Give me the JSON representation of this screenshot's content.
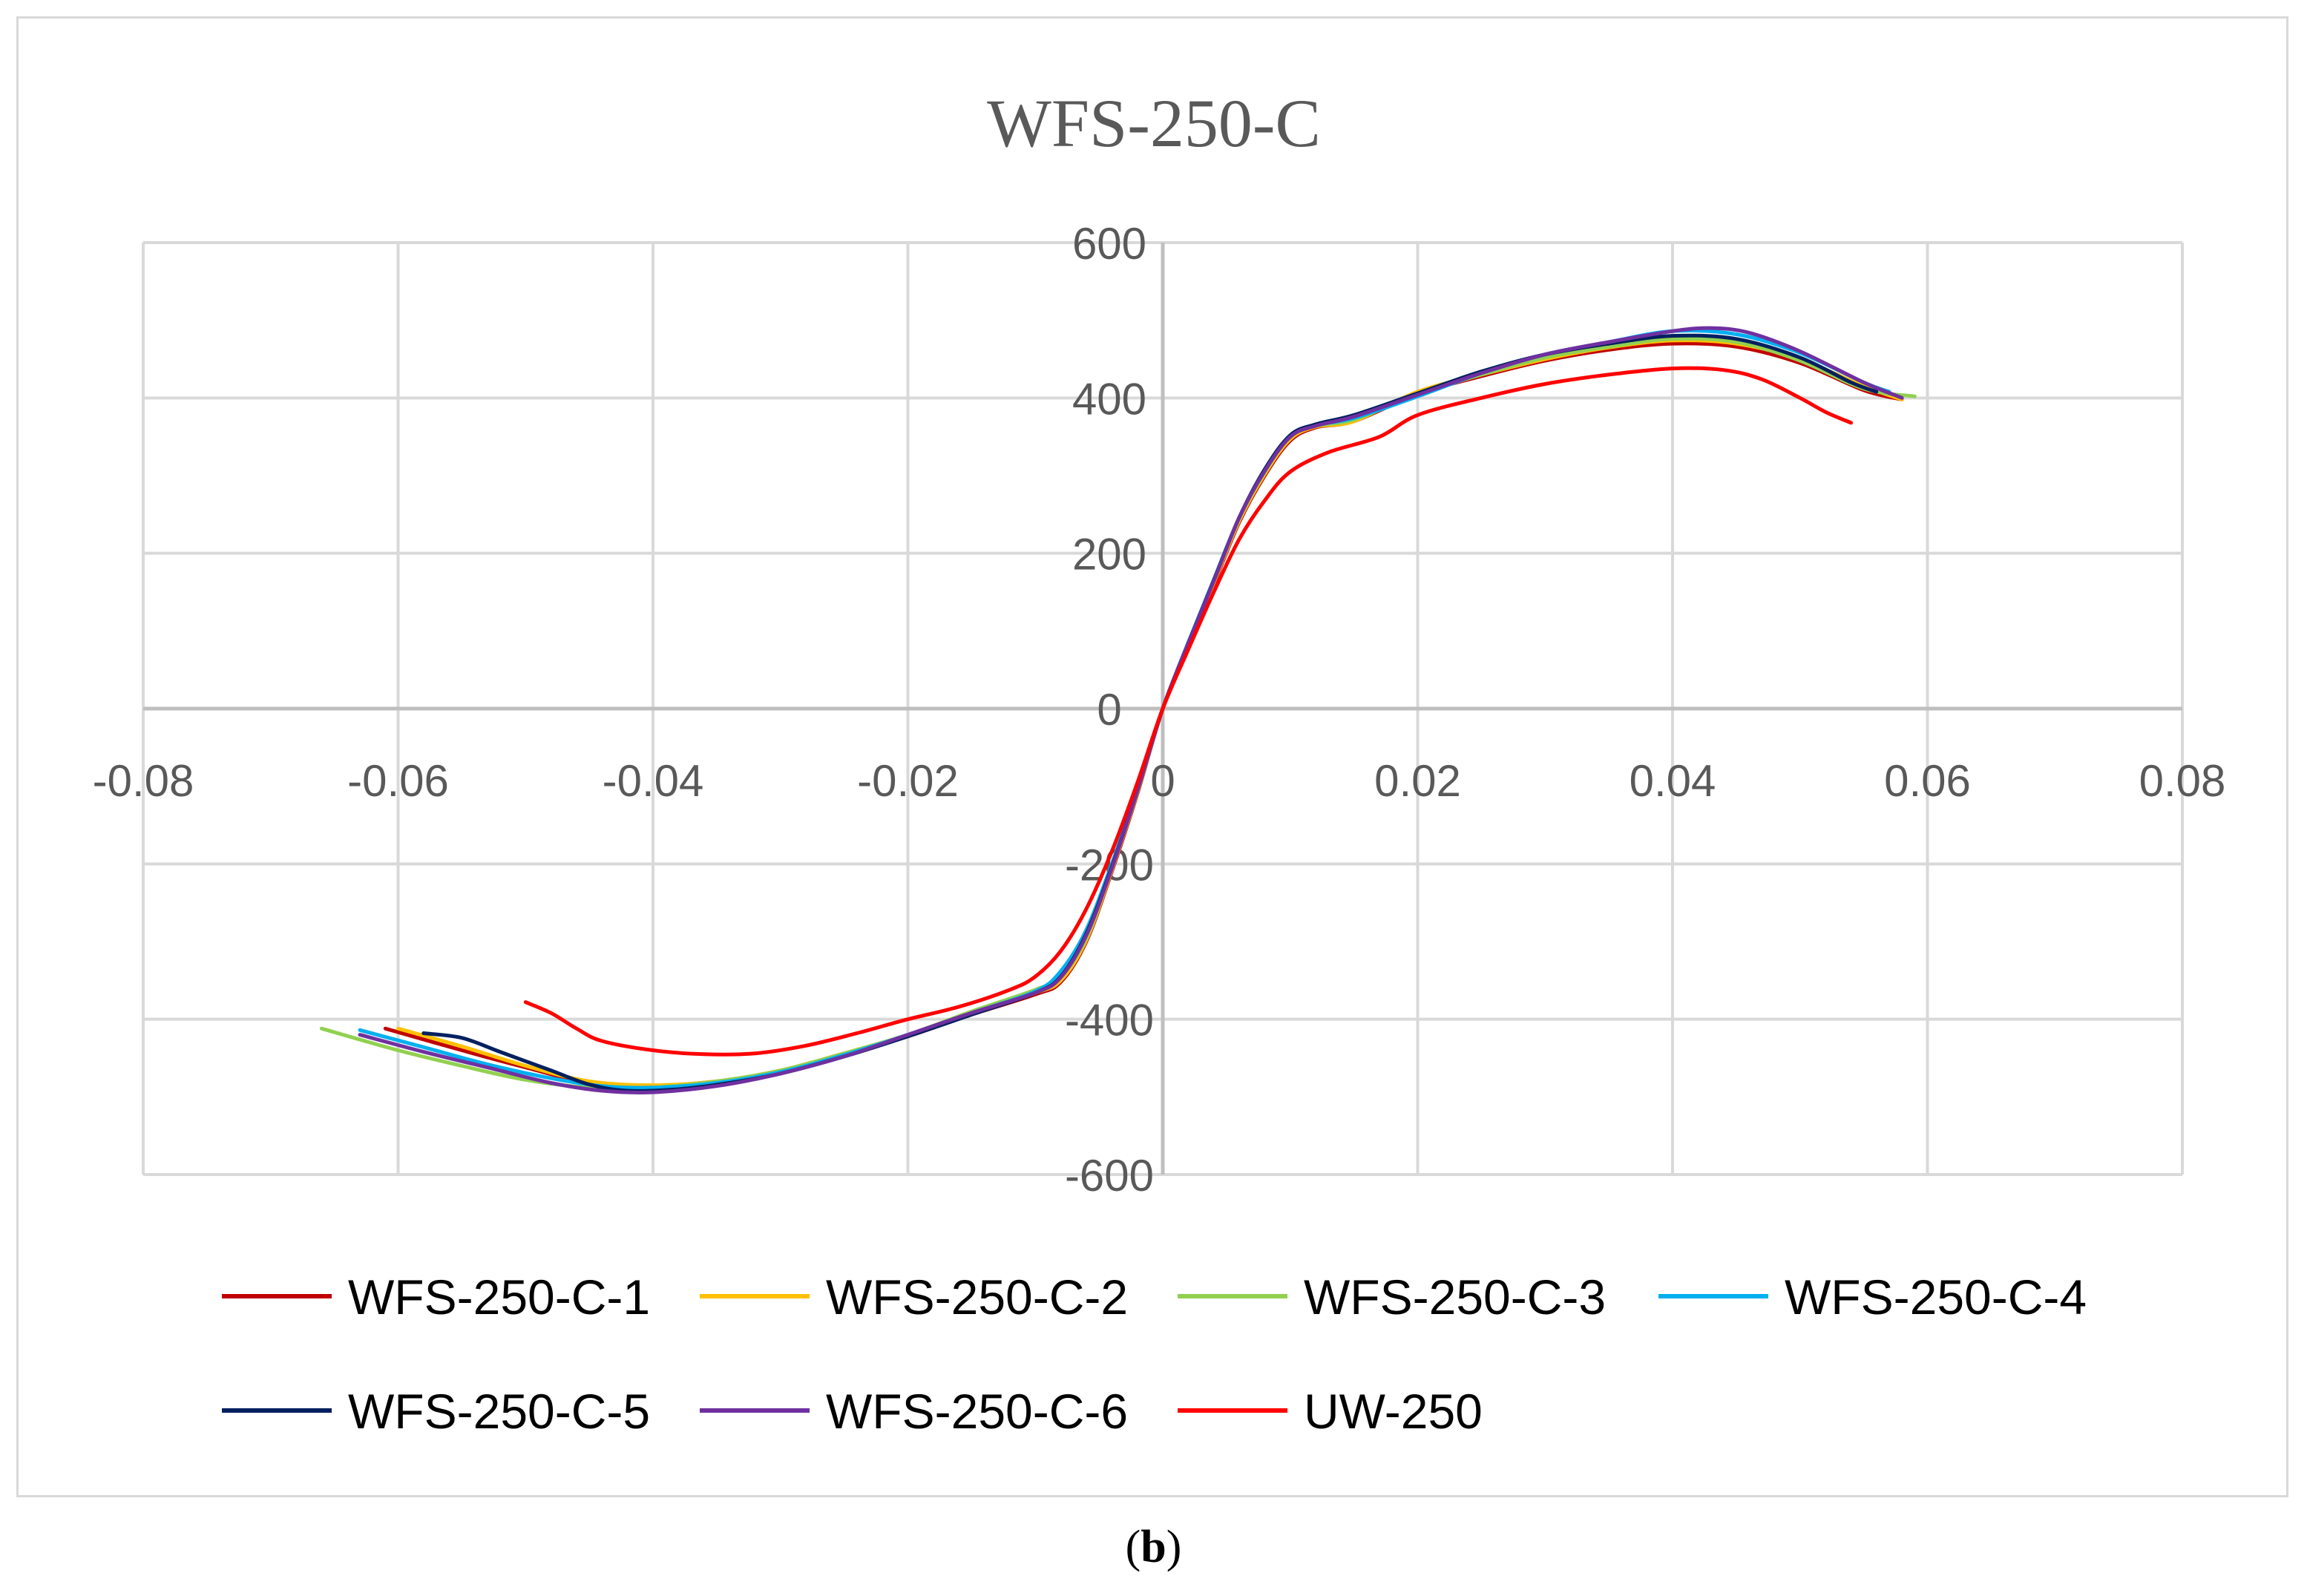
{
  "chart_data": {
    "type": "line",
    "title": "WFS-250-C",
    "xlabel": "",
    "ylabel": "",
    "xlim": [
      -0.08,
      0.08
    ],
    "ylim": [
      -600,
      600
    ],
    "xticks": [
      -0.08,
      -0.06,
      -0.04,
      -0.02,
      0,
      0.02,
      0.04,
      0.06,
      0.08
    ],
    "xtick_labels": [
      "-0.08",
      "-0.06",
      "-0.04",
      "-0.02",
      "0",
      "0.02",
      "0.04",
      "0.06",
      "0.08"
    ],
    "yticks": [
      -600,
      -400,
      -200,
      0,
      200,
      400,
      600
    ],
    "ytick_labels": [
      "-600",
      "-400",
      "-200",
      "0",
      "200",
      "400",
      "600"
    ],
    "grid": true,
    "legend_position": "bottom",
    "series": [
      {
        "name": "WFS-250-C-1",
        "color": "#c00000",
        "points": [
          [
            -0.061,
            -412
          ],
          [
            -0.055,
            -440
          ],
          [
            -0.05,
            -462
          ],
          [
            -0.045,
            -482
          ],
          [
            -0.04,
            -486
          ],
          [
            -0.035,
            -480
          ],
          [
            -0.03,
            -468
          ],
          [
            -0.025,
            -446
          ],
          [
            -0.02,
            -422
          ],
          [
            -0.015,
            -394
          ],
          [
            -0.01,
            -368
          ],
          [
            -0.008,
            -352
          ],
          [
            -0.006,
            -300
          ],
          [
            -0.004,
            -210
          ],
          [
            -0.002,
            -110
          ],
          [
            0,
            0
          ],
          [
            0.002,
            80
          ],
          [
            0.004,
            160
          ],
          [
            0.006,
            240
          ],
          [
            0.008,
            300
          ],
          [
            0.01,
            345
          ],
          [
            0.012,
            362
          ],
          [
            0.015,
            370
          ],
          [
            0.02,
            405
          ],
          [
            0.025,
            428
          ],
          [
            0.03,
            448
          ],
          [
            0.035,
            462
          ],
          [
            0.04,
            470
          ],
          [
            0.045,
            466
          ],
          [
            0.05,
            445
          ],
          [
            0.055,
            410
          ],
          [
            0.058,
            398
          ]
        ]
      },
      {
        "name": "WFS-250-C-2",
        "color": "#ffc000",
        "points": [
          [
            -0.06,
            -412
          ],
          [
            -0.055,
            -435
          ],
          [
            -0.05,
            -460
          ],
          [
            -0.045,
            -480
          ],
          [
            -0.04,
            -485
          ],
          [
            -0.035,
            -480
          ],
          [
            -0.03,
            -466
          ],
          [
            -0.025,
            -444
          ],
          [
            -0.02,
            -420
          ],
          [
            -0.015,
            -392
          ],
          [
            -0.01,
            -366
          ],
          [
            -0.008,
            -350
          ],
          [
            -0.006,
            -298
          ],
          [
            -0.004,
            -208
          ],
          [
            -0.002,
            -108
          ],
          [
            0,
            0
          ],
          [
            0.002,
            82
          ],
          [
            0.004,
            162
          ],
          [
            0.006,
            242
          ],
          [
            0.008,
            302
          ],
          [
            0.01,
            347
          ],
          [
            0.012,
            363
          ],
          [
            0.015,
            370
          ],
          [
            0.02,
            408
          ],
          [
            0.025,
            430
          ],
          [
            0.03,
            450
          ],
          [
            0.035,
            465
          ],
          [
            0.04,
            474
          ],
          [
            0.045,
            470
          ],
          [
            0.05,
            450
          ],
          [
            0.055,
            415
          ],
          [
            0.058,
            398
          ]
        ]
      },
      {
        "name": "WFS-250-C-3",
        "color": "#92d050",
        "points": [
          [
            -0.066,
            -412
          ],
          [
            -0.06,
            -440
          ],
          [
            -0.055,
            -460
          ],
          [
            -0.05,
            -478
          ],
          [
            -0.045,
            -488
          ],
          [
            -0.04,
            -488
          ],
          [
            -0.035,
            -480
          ],
          [
            -0.03,
            -466
          ],
          [
            -0.025,
            -444
          ],
          [
            -0.02,
            -420
          ],
          [
            -0.015,
            -390
          ],
          [
            -0.01,
            -362
          ],
          [
            -0.008,
            -345
          ],
          [
            -0.006,
            -295
          ],
          [
            -0.004,
            -205
          ],
          [
            -0.002,
            -106
          ],
          [
            0,
            0
          ],
          [
            0.002,
            84
          ],
          [
            0.004,
            165
          ],
          [
            0.006,
            245
          ],
          [
            0.008,
            305
          ],
          [
            0.01,
            350
          ],
          [
            0.012,
            364
          ],
          [
            0.015,
            372
          ],
          [
            0.02,
            405
          ],
          [
            0.025,
            430
          ],
          [
            0.03,
            452
          ],
          [
            0.035,
            466
          ],
          [
            0.04,
            476
          ],
          [
            0.045,
            472
          ],
          [
            0.05,
            448
          ],
          [
            0.055,
            412
          ],
          [
            0.059,
            402
          ]
        ]
      },
      {
        "name": "WFS-250-C-4",
        "color": "#00b0f0",
        "points": [
          [
            -0.063,
            -414
          ],
          [
            -0.058,
            -436
          ],
          [
            -0.053,
            -458
          ],
          [
            -0.048,
            -476
          ],
          [
            -0.044,
            -486
          ],
          [
            -0.04,
            -488
          ],
          [
            -0.035,
            -482
          ],
          [
            -0.03,
            -468
          ],
          [
            -0.025,
            -446
          ],
          [
            -0.02,
            -420
          ],
          [
            -0.015,
            -392
          ],
          [
            -0.01,
            -364
          ],
          [
            -0.008,
            -338
          ],
          [
            -0.006,
            -285
          ],
          [
            -0.004,
            -200
          ],
          [
            -0.002,
            -104
          ],
          [
            0,
            0
          ],
          [
            0.002,
            85
          ],
          [
            0.004,
            166
          ],
          [
            0.006,
            246
          ],
          [
            0.008,
            306
          ],
          [
            0.01,
            350
          ],
          [
            0.012,
            365
          ],
          [
            0.015,
            374
          ],
          [
            0.02,
            402
          ],
          [
            0.025,
            432
          ],
          [
            0.03,
            456
          ],
          [
            0.035,
            472
          ],
          [
            0.04,
            486
          ],
          [
            0.045,
            482
          ],
          [
            0.05,
            458
          ],
          [
            0.055,
            420
          ],
          [
            0.057,
            408
          ]
        ]
      },
      {
        "name": "WFS-250-C-5",
        "color": "#002060",
        "points": [
          [
            -0.058,
            -418
          ],
          [
            -0.055,
            -424
          ],
          [
            -0.052,
            -442
          ],
          [
            -0.048,
            -466
          ],
          [
            -0.045,
            -484
          ],
          [
            -0.042,
            -492
          ],
          [
            -0.038,
            -490
          ],
          [
            -0.034,
            -482
          ],
          [
            -0.03,
            -470
          ],
          [
            -0.025,
            -448
          ],
          [
            -0.02,
            -422
          ],
          [
            -0.015,
            -394
          ],
          [
            -0.01,
            -366
          ],
          [
            -0.008,
            -345
          ],
          [
            -0.006,
            -290
          ],
          [
            -0.004,
            -204
          ],
          [
            -0.002,
            -106
          ],
          [
            0,
            0
          ],
          [
            0.002,
            84
          ],
          [
            0.004,
            165
          ],
          [
            0.006,
            246
          ],
          [
            0.008,
            308
          ],
          [
            0.01,
            352
          ],
          [
            0.012,
            366
          ],
          [
            0.015,
            378
          ],
          [
            0.02,
            406
          ],
          [
            0.025,
            434
          ],
          [
            0.03,
            456
          ],
          [
            0.035,
            470
          ],
          [
            0.04,
            480
          ],
          [
            0.045,
            476
          ],
          [
            0.05,
            452
          ],
          [
            0.054,
            420
          ],
          [
            0.056,
            408
          ]
        ]
      },
      {
        "name": "WFS-250-C-6",
        "color": "#7030a0",
        "points": [
          [
            -0.063,
            -420
          ],
          [
            -0.058,
            -442
          ],
          [
            -0.053,
            -462
          ],
          [
            -0.048,
            -482
          ],
          [
            -0.044,
            -492
          ],
          [
            -0.04,
            -494
          ],
          [
            -0.035,
            -486
          ],
          [
            -0.03,
            -470
          ],
          [
            -0.025,
            -448
          ],
          [
            -0.02,
            -420
          ],
          [
            -0.015,
            -392
          ],
          [
            -0.01,
            -366
          ],
          [
            -0.008,
            -346
          ],
          [
            -0.006,
            -292
          ],
          [
            -0.004,
            -206
          ],
          [
            -0.002,
            -106
          ],
          [
            0,
            0
          ],
          [
            0.002,
            84
          ],
          [
            0.004,
            164
          ],
          [
            0.006,
            246
          ],
          [
            0.008,
            306
          ],
          [
            0.01,
            350
          ],
          [
            0.012,
            364
          ],
          [
            0.015,
            376
          ],
          [
            0.02,
            404
          ],
          [
            0.025,
            432
          ],
          [
            0.03,
            456
          ],
          [
            0.035,
            472
          ],
          [
            0.04,
            486
          ],
          [
            0.043,
            490
          ],
          [
            0.046,
            484
          ],
          [
            0.05,
            460
          ],
          [
            0.055,
            420
          ],
          [
            0.058,
            400
          ]
        ]
      },
      {
        "name": "UW-250",
        "color": "#ff0000",
        "points": [
          [
            -0.05,
            -378
          ],
          [
            -0.048,
            -392
          ],
          [
            -0.046,
            -412
          ],
          [
            -0.044,
            -428
          ],
          [
            -0.04,
            -440
          ],
          [
            -0.036,
            -445
          ],
          [
            -0.032,
            -444
          ],
          [
            -0.028,
            -434
          ],
          [
            -0.024,
            -418
          ],
          [
            -0.02,
            -400
          ],
          [
            -0.016,
            -384
          ],
          [
            -0.012,
            -362
          ],
          [
            -0.01,
            -345
          ],
          [
            -0.008,
            -312
          ],
          [
            -0.006,
            -258
          ],
          [
            -0.004,
            -184
          ],
          [
            -0.002,
            -96
          ],
          [
            0,
            0
          ],
          [
            0.002,
            76
          ],
          [
            0.004,
            150
          ],
          [
            0.006,
            218
          ],
          [
            0.008,
            268
          ],
          [
            0.01,
            305
          ],
          [
            0.013,
            330
          ],
          [
            0.017,
            350
          ],
          [
            0.02,
            378
          ],
          [
            0.025,
            400
          ],
          [
            0.03,
            418
          ],
          [
            0.035,
            430
          ],
          [
            0.04,
            438
          ],
          [
            0.044,
            436
          ],
          [
            0.047,
            424
          ],
          [
            0.05,
            400
          ],
          [
            0.052,
            382
          ],
          [
            0.054,
            368
          ]
        ]
      }
    ]
  },
  "caption": {
    "label": "b"
  }
}
